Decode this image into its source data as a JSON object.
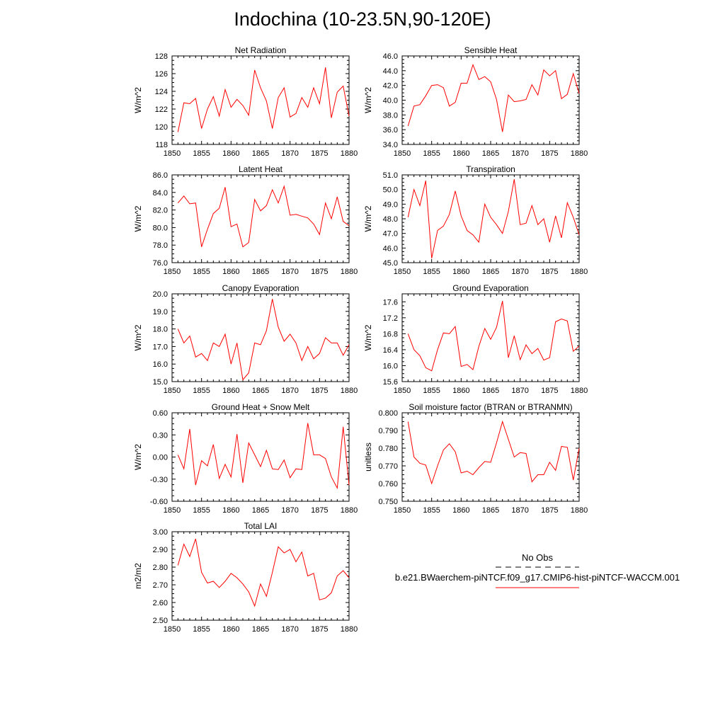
{
  "title": "Indochina (10-23.5N,90-120E)",
  "colors": {
    "model_line": "#ff0000",
    "obs_line": "#000000",
    "frame": "#000000"
  },
  "legend": {
    "obs_label": "No Obs",
    "model_label": "b.e21.BWaerchem-piNTCF.f09_g17.CMIP6-hist-piNTCF-WACCM.001"
  },
  "chart_data": [
    {
      "type": "line",
      "title": "Net Radiation",
      "xlabel": "",
      "ylabel": "W/m^2",
      "xlim": [
        1850,
        1880
      ],
      "ylim": [
        118,
        128
      ],
      "yticks": [
        "118",
        "120",
        "122",
        "124",
        "126",
        "128"
      ],
      "xticks": [
        "1850",
        "1855",
        "1860",
        "1865",
        "1870",
        "1875",
        "1880"
      ],
      "x": [
        1851,
        1852,
        1853,
        1854,
        1855,
        1856,
        1857,
        1858,
        1859,
        1860,
        1861,
        1862,
        1863,
        1864,
        1865,
        1866,
        1867,
        1868,
        1869,
        1870,
        1871,
        1872,
        1873,
        1874,
        1875,
        1876,
        1877,
        1878,
        1879,
        1880
      ],
      "values": [
        119.4,
        122.7,
        122.6,
        123.2,
        119.8,
        122.0,
        123.4,
        121.2,
        124.2,
        122.2,
        123.1,
        122.4,
        121.3,
        126.4,
        124.4,
        122.9,
        119.8,
        123.3,
        124.4,
        121.1,
        121.5,
        123.3,
        122.2,
        124.4,
        122.6,
        126.7,
        121.0,
        123.9,
        124.6,
        121.2
      ]
    },
    {
      "type": "line",
      "title": "Sensible Heat",
      "xlabel": "",
      "ylabel": "W/m^2",
      "xlim": [
        1850,
        1880
      ],
      "ylim": [
        34.0,
        46.0
      ],
      "yticks": [
        "34.0",
        "36.0",
        "38.0",
        "40.0",
        "42.0",
        "44.0",
        "46.0"
      ],
      "xticks": [
        "1850",
        "1855",
        "1860",
        "1865",
        "1870",
        "1875",
        "1880"
      ],
      "x": [
        1851,
        1852,
        1853,
        1854,
        1855,
        1856,
        1857,
        1858,
        1859,
        1860,
        1861,
        1862,
        1863,
        1864,
        1865,
        1866,
        1867,
        1868,
        1869,
        1870,
        1871,
        1872,
        1873,
        1874,
        1875,
        1876,
        1877,
        1878,
        1879,
        1880
      ],
      "values": [
        36.5,
        39.2,
        39.4,
        40.6,
        42.0,
        42.1,
        41.7,
        39.2,
        39.7,
        42.3,
        42.3,
        44.8,
        42.8,
        43.2,
        42.5,
        40.1,
        35.7,
        40.7,
        39.8,
        39.9,
        40.1,
        42.1,
        40.7,
        44.1,
        43.3,
        44.0,
        40.2,
        40.8,
        43.6,
        40.9
      ]
    },
    {
      "type": "line",
      "title": "Latent Heat",
      "xlabel": "",
      "ylabel": "W/m^2",
      "xlim": [
        1850,
        1880
      ],
      "ylim": [
        76.0,
        86.0
      ],
      "yticks": [
        "76.0",
        "78.0",
        "80.0",
        "82.0",
        "84.0",
        "86.0"
      ],
      "xticks": [
        "1850",
        "1855",
        "1860",
        "1865",
        "1870",
        "1875",
        "1880"
      ],
      "x": [
        1851,
        1852,
        1853,
        1854,
        1855,
        1856,
        1857,
        1858,
        1859,
        1860,
        1861,
        1862,
        1863,
        1864,
        1865,
        1866,
        1867,
        1868,
        1869,
        1870,
        1871,
        1872,
        1873,
        1874,
        1875,
        1876,
        1877,
        1878,
        1879,
        1880
      ],
      "values": [
        82.8,
        83.6,
        82.7,
        82.8,
        77.8,
        79.8,
        81.6,
        82.2,
        84.6,
        80.1,
        80.4,
        77.8,
        78.3,
        83.2,
        81.9,
        82.5,
        84.3,
        82.8,
        84.7,
        81.4,
        81.5,
        81.3,
        81.1,
        80.4,
        79.2,
        82.8,
        81.0,
        83.5,
        80.7,
        80.2
      ]
    },
    {
      "type": "line",
      "title": "Transpiration",
      "xlabel": "",
      "ylabel": "W/m^2",
      "xlim": [
        1850,
        1880
      ],
      "ylim": [
        45.0,
        51.0
      ],
      "yticks": [
        "45.0",
        "46.0",
        "47.0",
        "48.0",
        "49.0",
        "50.0",
        "51.0"
      ],
      "xticks": [
        "1850",
        "1855",
        "1860",
        "1865",
        "1870",
        "1875",
        "1880"
      ],
      "x": [
        1851,
        1852,
        1853,
        1854,
        1855,
        1856,
        1857,
        1858,
        1859,
        1860,
        1861,
        1862,
        1863,
        1864,
        1865,
        1866,
        1867,
        1868,
        1869,
        1870,
        1871,
        1872,
        1873,
        1874,
        1875,
        1876,
        1877,
        1878,
        1879,
        1880
      ],
      "values": [
        48.1,
        50.0,
        48.9,
        50.6,
        45.3,
        47.2,
        47.5,
        48.3,
        49.9,
        48.2,
        47.2,
        46.9,
        46.4,
        49.0,
        48.1,
        47.6,
        47.0,
        48.5,
        50.7,
        47.6,
        47.7,
        48.9,
        47.6,
        48.0,
        46.4,
        48.2,
        46.7,
        49.1,
        48.1,
        46.9
      ]
    },
    {
      "type": "line",
      "title": "Canopy Evaporation",
      "xlabel": "",
      "ylabel": "W/m^2",
      "xlim": [
        1850,
        1880
      ],
      "ylim": [
        15.0,
        20.0
      ],
      "yticks": [
        "15.0",
        "16.0",
        "17.0",
        "18.0",
        "19.0",
        "20.0"
      ],
      "xticks": [
        "1850",
        "1855",
        "1860",
        "1865",
        "1870",
        "1875",
        "1880"
      ],
      "x": [
        1851,
        1852,
        1853,
        1854,
        1855,
        1856,
        1857,
        1858,
        1859,
        1860,
        1861,
        1862,
        1863,
        1864,
        1865,
        1866,
        1867,
        1868,
        1869,
        1870,
        1871,
        1872,
        1873,
        1874,
        1875,
        1876,
        1877,
        1878,
        1879,
        1880
      ],
      "values": [
        18.0,
        17.2,
        17.6,
        16.4,
        16.6,
        16.2,
        17.2,
        17.0,
        17.7,
        16.0,
        17.2,
        15.1,
        15.5,
        17.2,
        17.1,
        17.9,
        19.7,
        18.1,
        17.3,
        17.7,
        17.2,
        16.2,
        17.0,
        16.3,
        16.6,
        17.5,
        17.2,
        17.2,
        16.5,
        17.1
      ]
    },
    {
      "type": "line",
      "title": "Ground Evaporation",
      "xlabel": "",
      "ylabel": "W/m^2",
      "xlim": [
        1850,
        1880
      ],
      "ylim": [
        15.6,
        17.8
      ],
      "yticks": [
        "15.6",
        "16.0",
        "16.4",
        "16.8",
        "17.2",
        "17.6"
      ],
      "xticks": [
        "1850",
        "1855",
        "1860",
        "1865",
        "1870",
        "1875",
        "1880"
      ],
      "x": [
        1851,
        1852,
        1853,
        1854,
        1855,
        1856,
        1857,
        1858,
        1859,
        1860,
        1861,
        1862,
        1863,
        1864,
        1865,
        1866,
        1867,
        1868,
        1869,
        1870,
        1871,
        1872,
        1873,
        1874,
        1875,
        1876,
        1877,
        1878,
        1879,
        1880
      ],
      "values": [
        16.8,
        16.4,
        16.25,
        15.95,
        15.87,
        16.4,
        16.82,
        16.8,
        16.98,
        15.98,
        16.03,
        15.9,
        16.48,
        16.93,
        16.66,
        16.96,
        17.62,
        16.2,
        16.75,
        16.15,
        16.52,
        16.3,
        16.43,
        16.14,
        16.2,
        17.1,
        17.17,
        17.12,
        16.36,
        16.49
      ]
    },
    {
      "type": "line",
      "title": "Ground Heat + Snow Melt",
      "xlabel": "",
      "ylabel": "W/m^2",
      "xlim": [
        1850,
        1880
      ],
      "ylim": [
        -0.6,
        0.6
      ],
      "yticks": [
        "-0.60",
        "-0.30",
        "0.00",
        "0.30",
        "0.60"
      ],
      "xticks": [
        "1850",
        "1855",
        "1860",
        "1865",
        "1870",
        "1875",
        "1880"
      ],
      "x": [
        1851,
        1852,
        1853,
        1854,
        1855,
        1856,
        1857,
        1858,
        1859,
        1860,
        1861,
        1862,
        1863,
        1864,
        1865,
        1866,
        1867,
        1868,
        1869,
        1870,
        1871,
        1872,
        1873,
        1874,
        1875,
        1876,
        1877,
        1878,
        1879,
        1880
      ],
      "values": [
        0.03,
        -0.16,
        0.38,
        -0.38,
        -0.05,
        -0.12,
        0.17,
        -0.29,
        -0.1,
        -0.27,
        0.31,
        -0.35,
        0.19,
        0.03,
        -0.13,
        0.09,
        -0.16,
        -0.17,
        -0.04,
        -0.28,
        -0.16,
        -0.17,
        0.46,
        0.03,
        0.03,
        -0.02,
        -0.27,
        -0.42,
        0.41,
        -0.38
      ]
    },
    {
      "type": "line",
      "title": "Soil moisture factor (BTRAN or BTRANMN)",
      "xlabel": "",
      "ylabel": "unitless",
      "xlim": [
        1850,
        1880
      ],
      "ylim": [
        0.75,
        0.8
      ],
      "yticks": [
        "0.750",
        "0.760",
        "0.770",
        "0.780",
        "0.790",
        "0.800"
      ],
      "xticks": [
        "1850",
        "1855",
        "1860",
        "1865",
        "1870",
        "1875",
        "1880"
      ],
      "x": [
        1851,
        1852,
        1853,
        1854,
        1855,
        1856,
        1857,
        1858,
        1859,
        1860,
        1861,
        1862,
        1863,
        1864,
        1865,
        1866,
        1867,
        1868,
        1869,
        1870,
        1871,
        1872,
        1873,
        1874,
        1875,
        1876,
        1877,
        1878,
        1879,
        1880
      ],
      "values": [
        0.795,
        0.775,
        0.7715,
        0.7705,
        0.76,
        0.77,
        0.779,
        0.7825,
        0.778,
        0.766,
        0.767,
        0.765,
        0.769,
        0.7725,
        0.772,
        0.783,
        0.795,
        0.785,
        0.775,
        0.7775,
        0.777,
        0.761,
        0.765,
        0.765,
        0.772,
        0.7675,
        0.781,
        0.7805,
        0.762,
        0.78
      ]
    },
    {
      "type": "line",
      "title": "Total LAI",
      "xlabel": "",
      "ylabel": "m2/m2",
      "xlim": [
        1850,
        1880
      ],
      "ylim": [
        2.5,
        3.0
      ],
      "yticks": [
        "2.50",
        "2.60",
        "2.70",
        "2.80",
        "2.90",
        "3.00"
      ],
      "xticks": [
        "1850",
        "1855",
        "1860",
        "1865",
        "1870",
        "1875",
        "1880"
      ],
      "x": [
        1851,
        1852,
        1853,
        1854,
        1855,
        1856,
        1857,
        1858,
        1859,
        1860,
        1861,
        1862,
        1863,
        1864,
        1865,
        1866,
        1867,
        1868,
        1869,
        1870,
        1871,
        1872,
        1873,
        1874,
        1875,
        1876,
        1877,
        1878,
        1879,
        1880
      ],
      "values": [
        2.81,
        2.93,
        2.86,
        2.96,
        2.77,
        2.71,
        2.72,
        2.685,
        2.72,
        2.765,
        2.74,
        2.705,
        2.66,
        2.58,
        2.705,
        2.635,
        2.77,
        2.915,
        2.88,
        2.9,
        2.83,
        2.885,
        2.75,
        2.765,
        2.615,
        2.625,
        2.655,
        2.75,
        2.78,
        2.74
      ]
    }
  ]
}
